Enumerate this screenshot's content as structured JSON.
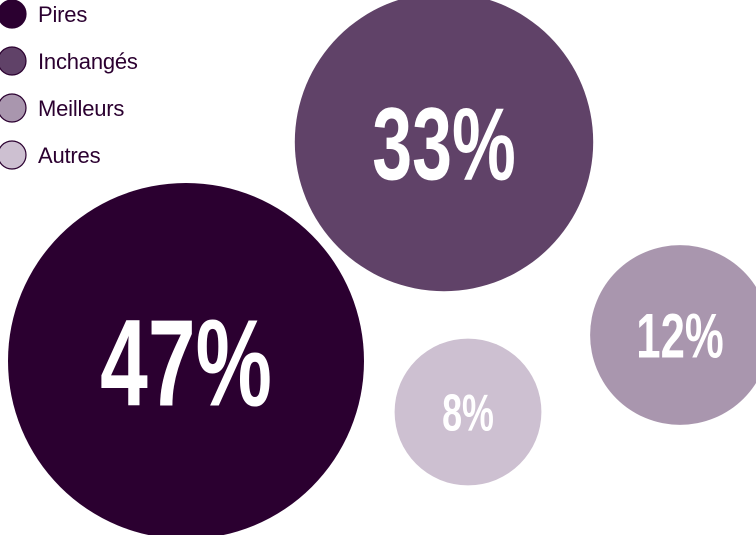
{
  "chart_data": {
    "type": "bubble",
    "title": "",
    "series": [
      {
        "name": "Pires",
        "value": 47,
        "label": "47%",
        "color": "#2b0030"
      },
      {
        "name": "Inchangés",
        "value": 33,
        "label": "33%",
        "color": "#604268"
      },
      {
        "name": "Meilleurs",
        "value": 12,
        "label": "12%",
        "color": "#a996ae"
      },
      {
        "name": "Autres",
        "value": 8,
        "label": "8%",
        "color": "#cdc0d1"
      }
    ],
    "legend": {
      "placement": "top-left",
      "items": [
        "Pires",
        "Inchangés",
        "Meilleurs",
        "Autres"
      ]
    }
  }
}
